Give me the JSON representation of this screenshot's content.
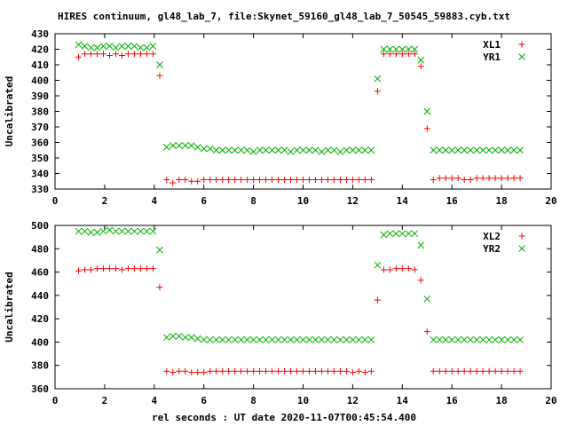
{
  "title": "HIRES continuum, gl48_lab_7, file:Skynet_59160_gl48_lab_7_50545_59883.cyb.txt",
  "xlabel": "rel seconds : UT date 2020-11-07T00:45:54.400",
  "colors": {
    "red": "#ff0000",
    "green": "#00b000",
    "axis": "#000000"
  },
  "chart_data": [
    {
      "type": "scatter",
      "title": "",
      "xlabel": "",
      "ylabel": "Uncalibrated",
      "xlim": [
        0,
        20
      ],
      "ylim": [
        330,
        430
      ],
      "xticks": [
        0,
        2,
        4,
        6,
        8,
        10,
        12,
        14,
        16,
        18,
        20
      ],
      "yticks": [
        330,
        340,
        350,
        360,
        370,
        380,
        390,
        400,
        410,
        420,
        430
      ],
      "legend": "top-right",
      "grid": false,
      "x": [
        0.95,
        1.2,
        1.45,
        1.7,
        1.95,
        2.2,
        2.45,
        2.7,
        2.95,
        3.2,
        3.45,
        3.7,
        3.95,
        4.22,
        4.5,
        4.75,
        5.0,
        5.25,
        5.5,
        5.75,
        6.0,
        6.25,
        6.5,
        6.75,
        7.0,
        7.25,
        7.5,
        7.75,
        8.0,
        8.25,
        8.5,
        8.75,
        9.0,
        9.25,
        9.5,
        9.75,
        10.0,
        10.25,
        10.5,
        10.75,
        11.0,
        11.25,
        11.5,
        11.75,
        12.0,
        12.25,
        12.5,
        12.75,
        13.0,
        13.25,
        13.5,
        13.75,
        14.0,
        14.25,
        14.5,
        14.75,
        15.0,
        15.25,
        15.5,
        15.75,
        16.0,
        16.25,
        16.5,
        16.75,
        17.0,
        17.25,
        17.5,
        17.75,
        18.0,
        18.25,
        18.5,
        18.75
      ],
      "series": [
        {
          "name": "XL1",
          "color": "#ff0000",
          "marker": "plus",
          "values": [
            415,
            417,
            417,
            417,
            417,
            416,
            417,
            416,
            417,
            417,
            417,
            417,
            417,
            403,
            336,
            334,
            336,
            336,
            335,
            335,
            336,
            336,
            336,
            336,
            336,
            336,
            336,
            336,
            336,
            336,
            336,
            336,
            336,
            336,
            336,
            336,
            336,
            336,
            336,
            336,
            336,
            336,
            336,
            336,
            336,
            336,
            336,
            336,
            393,
            417,
            417,
            417,
            417,
            417,
            417,
            409,
            369,
            336,
            337,
            337,
            337,
            337,
            336,
            336,
            337,
            337,
            337,
            337,
            337,
            337,
            337,
            337
          ]
        },
        {
          "name": "YR1",
          "color": "#00b000",
          "marker": "cross",
          "values": [
            423,
            422,
            421,
            421,
            422,
            422,
            421,
            422,
            422,
            422,
            421,
            421,
            422,
            410,
            357,
            358,
            358,
            358,
            358,
            357,
            356,
            356,
            355,
            355,
            355,
            355,
            355,
            355,
            354,
            355,
            355,
            355,
            355,
            355,
            354,
            355,
            355,
            355,
            355,
            354,
            355,
            355,
            354,
            355,
            355,
            355,
            355,
            355,
            401,
            420,
            420,
            420,
            420,
            420,
            420,
            413,
            380,
            355,
            355,
            355,
            355,
            355,
            355,
            355,
            355,
            355,
            355,
            355,
            355,
            355,
            355,
            355
          ]
        }
      ]
    },
    {
      "type": "scatter",
      "title": "",
      "xlabel": "rel seconds : UT date 2020-11-07T00:45:54.400",
      "ylabel": "Uncalibrated",
      "xlim": [
        0,
        20
      ],
      "ylim": [
        360,
        500
      ],
      "xticks": [
        0,
        2,
        4,
        6,
        8,
        10,
        12,
        14,
        16,
        18,
        20
      ],
      "yticks": [
        360,
        380,
        400,
        420,
        440,
        460,
        480,
        500
      ],
      "legend": "top-right",
      "grid": false,
      "x": [
        0.95,
        1.2,
        1.45,
        1.7,
        1.95,
        2.2,
        2.45,
        2.7,
        2.95,
        3.2,
        3.45,
        3.7,
        3.95,
        4.22,
        4.5,
        4.75,
        5.0,
        5.25,
        5.5,
        5.75,
        6.0,
        6.25,
        6.5,
        6.75,
        7.0,
        7.25,
        7.5,
        7.75,
        8.0,
        8.25,
        8.5,
        8.75,
        9.0,
        9.25,
        9.5,
        9.75,
        10.0,
        10.25,
        10.5,
        10.75,
        11.0,
        11.25,
        11.5,
        11.75,
        12.0,
        12.25,
        12.5,
        12.75,
        13.0,
        13.25,
        13.5,
        13.75,
        14.0,
        14.25,
        14.5,
        14.75,
        15.0,
        15.25,
        15.5,
        15.75,
        16.0,
        16.25,
        16.5,
        16.75,
        17.0,
        17.25,
        17.5,
        17.75,
        18.0,
        18.25,
        18.5,
        18.75
      ],
      "series": [
        {
          "name": "XL2",
          "color": "#ff0000",
          "marker": "plus",
          "values": [
            461,
            462,
            462,
            463,
            463,
            463,
            463,
            462,
            463,
            463,
            463,
            463,
            463,
            447,
            375,
            374,
            375,
            375,
            374,
            374,
            374,
            375,
            375,
            375,
            375,
            375,
            375,
            375,
            375,
            375,
            375,
            375,
            375,
            375,
            375,
            375,
            375,
            375,
            375,
            375,
            375,
            375,
            375,
            375,
            374,
            375,
            374,
            375,
            436,
            462,
            462,
            463,
            463,
            463,
            462,
            453,
            409,
            375,
            375,
            375,
            375,
            375,
            375,
            375,
            375,
            375,
            375,
            375,
            375,
            375,
            375,
            375
          ]
        },
        {
          "name": "YR2",
          "color": "#00b000",
          "marker": "cross",
          "values": [
            495,
            495,
            494,
            494,
            495,
            496,
            495,
            495,
            495,
            495,
            495,
            495,
            495,
            479,
            404,
            405,
            405,
            404,
            404,
            403,
            402,
            402,
            402,
            402,
            402,
            402,
            402,
            402,
            402,
            402,
            402,
            402,
            402,
            402,
            402,
            402,
            402,
            402,
            402,
            402,
            402,
            402,
            402,
            402,
            402,
            402,
            402,
            402,
            466,
            492,
            493,
            493,
            493,
            493,
            493,
            483,
            437,
            402,
            402,
            402,
            402,
            402,
            402,
            402,
            402,
            402,
            402,
            402,
            402,
            402,
            402,
            402
          ]
        }
      ]
    }
  ]
}
